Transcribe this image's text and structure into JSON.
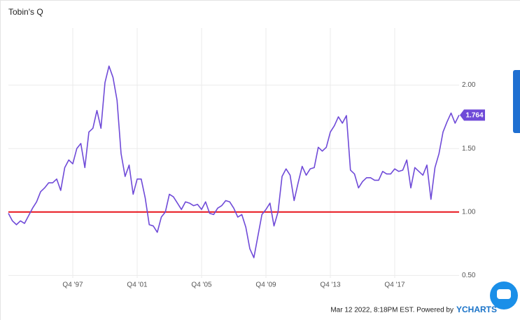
{
  "chart_data": {
    "type": "line",
    "title": "Tobin's Q",
    "categories": [
      null,
      null,
      null,
      null,
      null,
      null,
      null,
      null,
      null,
      null,
      null,
      null,
      null,
      null,
      null,
      null,
      "Q4 '97",
      null,
      null,
      null,
      null,
      null,
      null,
      null,
      null,
      null,
      null,
      null,
      null,
      null,
      null,
      null,
      "Q4 '01",
      null,
      null,
      null,
      null,
      null,
      null,
      null,
      null,
      null,
      null,
      null,
      null,
      null,
      null,
      null,
      "Q4 '05",
      null,
      null,
      null,
      null,
      null,
      null,
      null,
      null,
      null,
      null,
      null,
      null,
      null,
      null,
      null,
      "Q4 '09",
      null,
      null,
      null,
      null,
      null,
      null,
      null,
      null,
      null,
      null,
      null,
      null,
      null,
      null,
      null,
      "Q4 '13",
      null,
      null,
      null,
      null,
      null,
      null,
      null,
      null,
      null,
      null,
      null,
      null,
      null,
      null,
      null,
      "Q4 '17",
      null,
      null,
      null,
      null,
      null,
      null,
      null,
      null,
      null,
      null,
      null,
      null,
      null,
      null,
      null,
      null
    ],
    "series": [
      {
        "name": "Tobin's Q",
        "color": "#6f4ad8",
        "values": [
          0.99,
          0.93,
          0.9,
          0.93,
          0.91,
          0.97,
          1.03,
          1.08,
          1.16,
          1.19,
          1.23,
          1.23,
          1.26,
          1.17,
          1.35,
          1.41,
          1.38,
          1.5,
          1.54,
          1.35,
          1.63,
          1.66,
          1.8,
          1.66,
          2.02,
          2.15,
          2.06,
          1.88,
          1.46,
          1.28,
          1.37,
          1.14,
          1.26,
          1.26,
          1.11,
          0.9,
          0.89,
          0.84,
          0.96,
          1.0,
          1.14,
          1.12,
          1.07,
          1.02,
          1.08,
          1.07,
          1.05,
          1.06,
          1.02,
          1.08,
          0.99,
          0.98,
          1.03,
          1.05,
          1.09,
          1.08,
          1.03,
          0.96,
          0.98,
          0.88,
          0.71,
          0.64,
          0.81,
          0.98,
          1.02,
          1.07,
          0.89,
          1.0,
          1.28,
          1.34,
          1.29,
          1.09,
          1.23,
          1.36,
          1.29,
          1.34,
          1.35,
          1.51,
          1.48,
          1.51,
          1.63,
          1.68,
          1.75,
          1.7,
          1.76,
          1.33,
          1.3,
          1.19,
          1.24,
          1.27,
          1.27,
          1.25,
          1.25,
          1.32,
          1.3,
          1.3,
          1.34,
          1.32,
          1.33,
          1.41,
          1.19,
          1.35,
          1.32,
          1.29,
          1.37,
          1.1,
          1.35,
          1.46,
          1.63,
          1.71,
          1.78,
          1.7,
          1.764
        ]
      }
    ],
    "ylim": [
      0.48,
      2.45
    ],
    "yticks": [
      {
        "value": 0.5,
        "label": "0.50"
      },
      {
        "value": 1,
        "label": "1.00"
      },
      {
        "value": 1.5,
        "label": "1.50"
      },
      {
        "value": 2,
        "label": "2.00"
      }
    ],
    "reference_line": {
      "value": 1,
      "color": "#e8141c"
    },
    "grid": true,
    "footer": "Mar 12 2022, 8:18PM EST. Powered by",
    "brand": "YCHARTS"
  }
}
